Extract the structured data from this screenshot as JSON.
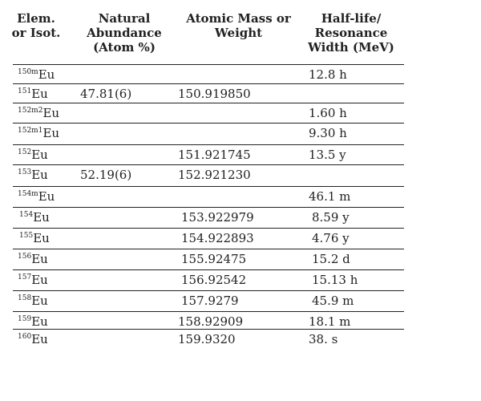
{
  "table": {
    "headers": [
      [
        "Elem.",
        "or Isot."
      ],
      [
        "Natural",
        "Abundance",
        "(Atom %)"
      ],
      [
        "Atomic Mass or",
        "Weight"
      ],
      [
        "Half-life/",
        "Resonance",
        "Width (MeV)"
      ]
    ],
    "rows": [
      {
        "mass_number": "150m",
        "element": "Eu",
        "abundance": "",
        "mass": "",
        "half_life": "12.8 h"
      },
      {
        "mass_number": "151",
        "element": "Eu",
        "abundance": "47.81(6)",
        "mass": "150.919850",
        "half_life": ""
      },
      {
        "mass_number": "152m2",
        "element": "Eu",
        "abundance": "",
        "mass": "",
        "half_life": "1.60 h"
      },
      {
        "mass_number": "152m1",
        "element": "Eu",
        "abundance": "",
        "mass": "",
        "half_life": "9.30 h"
      },
      {
        "mass_number": "152",
        "element": "Eu",
        "abundance": "",
        "mass": "151.921745",
        "half_life": "13.5 y"
      },
      {
        "mass_number": "153",
        "element": "Eu",
        "abundance": "52.19(6)",
        "mass": "152.921230",
        "half_life": ""
      },
      {
        "mass_number": "154m",
        "element": "Eu",
        "abundance": "",
        "mass": "",
        "half_life": "46.1 m"
      },
      {
        "mass_number": "154",
        "element": "Eu",
        "abundance": "",
        "mass": "153.922979",
        "half_life": "8.59 y"
      },
      {
        "mass_number": "155",
        "element": "Eu",
        "abundance": "",
        "mass": "154.922893",
        "half_life": "4.76 y"
      },
      {
        "mass_number": "156",
        "element": "Eu",
        "abundance": "",
        "mass": "155.92475",
        "half_life": "15.2 d"
      },
      {
        "mass_number": "157",
        "element": "Eu",
        "abundance": "",
        "mass": "156.92542",
        "half_life": "15.13 h"
      },
      {
        "mass_number": "158",
        "element": "Eu",
        "abundance": "",
        "mass": "157.9279",
        "half_life": "45.9 m"
      },
      {
        "mass_number": "159",
        "element": "Eu",
        "abundance": "",
        "mass": "158.92909",
        "half_life": "18.1 m"
      },
      {
        "mass_number": "160",
        "element": "Eu",
        "abundance": "",
        "mass": "159.9320",
        "half_life": "38. s"
      }
    ]
  }
}
